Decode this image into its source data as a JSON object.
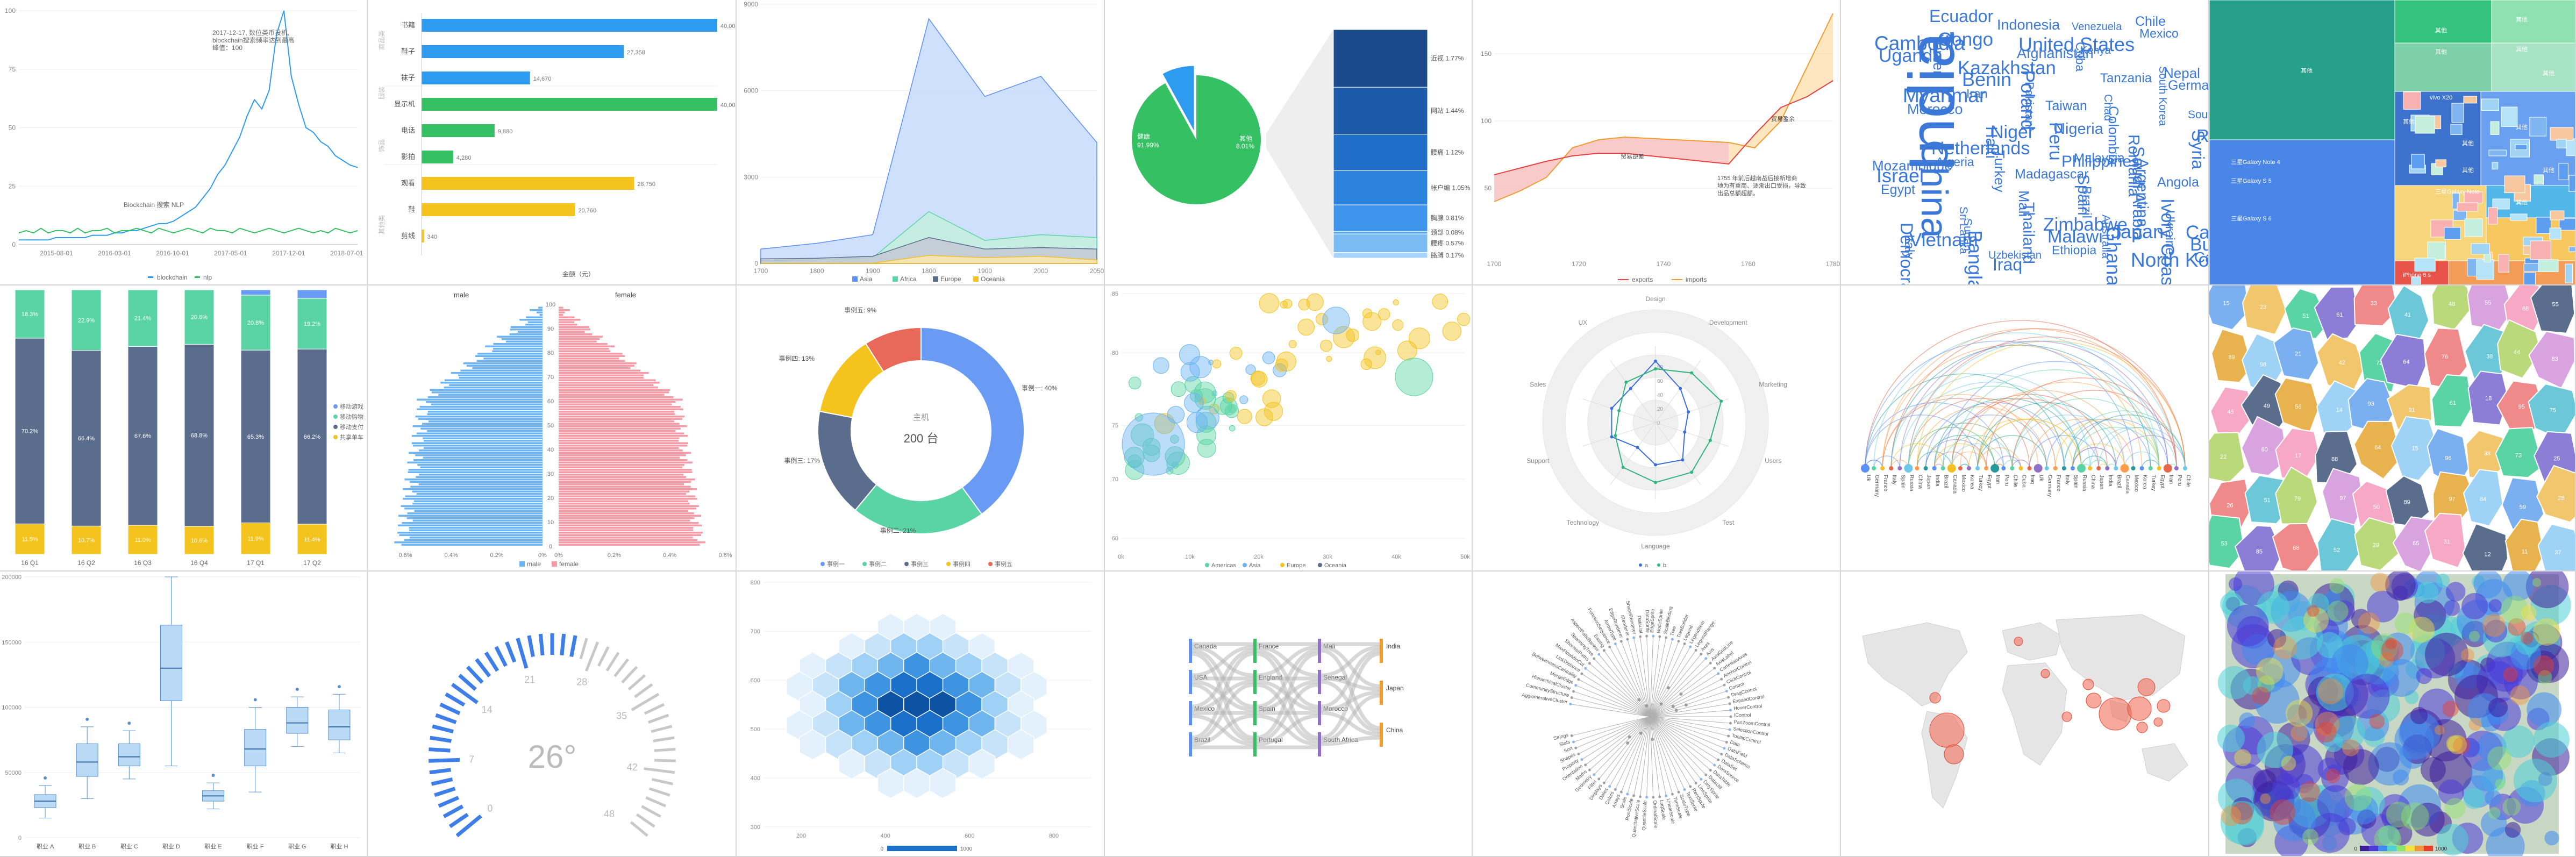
{
  "colors": {
    "blue": "#2d9cf0",
    "green": "#36c064",
    "yellow": "#f5c31e",
    "navy": "#5a6d8c",
    "teal": "#5ad4a5",
    "red": "#e8685a",
    "axis": "#999999",
    "grid": "#eeeeee"
  },
  "chart_data": [
    {
      "id": "c1",
      "type": "line",
      "series_names": [
        "blockchain",
        "nlp"
      ],
      "x_ticks": [
        "2015-08-01",
        "2016-03-01",
        "2016-10-01",
        "2017-05-01",
        "2017-12-01",
        "2018-07-01"
      ],
      "y_ticks": [
        "0",
        "25",
        "50",
        "75",
        "100"
      ],
      "ylim": [
        0,
        100
      ],
      "annotation_top": [
        "2017-12-17, 数位类币投机,",
        "blockchain搜索频率达到最高",
        "峰值：100"
      ],
      "annotation_low": "Blockchain 搜索 NLP",
      "series": [
        {
          "name": "blockchain",
          "values": [
            2,
            2,
            2,
            2,
            2,
            3,
            3,
            3,
            3,
            3,
            4,
            4,
            4,
            5,
            5,
            6,
            6,
            7,
            8,
            9,
            9,
            10,
            12,
            14,
            16,
            20,
            24,
            30,
            34,
            40,
            46,
            55,
            62,
            58,
            66,
            90,
            100,
            72,
            60,
            50,
            48,
            44,
            42,
            38,
            36,
            34,
            33
          ]
        },
        {
          "name": "nlp",
          "values": [
            5,
            6,
            5,
            7,
            5,
            6,
            6,
            5,
            7,
            5,
            6,
            6,
            7,
            5,
            6,
            6,
            7,
            6,
            5,
            7,
            6,
            5,
            6,
            7,
            6,
            5,
            7,
            6,
            6,
            5,
            7,
            6,
            5,
            6,
            7,
            6,
            5,
            6,
            7,
            6,
            5,
            6,
            5,
            7,
            6,
            5,
            6
          ]
        }
      ]
    },
    {
      "id": "c2",
      "type": "bar",
      "categories": [
        "书籍",
        "鞋子",
        "袜子",
        "显示机",
        "电话",
        "影拍",
        "观看",
        "鞋",
        "剪线"
      ],
      "groups": [
        "商品类",
        "",
        "服装",
        "",
        "饰品",
        "",
        "",
        "其他类",
        ""
      ],
      "values": [
        40000,
        27358,
        14670,
        40000,
        9880,
        4280,
        28750,
        20760,
        340
      ],
      "value_labels": [
        "40,000",
        "27,358",
        "14,670",
        "40,000",
        "9,880",
        "4,280",
        "28,750",
        "20,760",
        "340"
      ],
      "bar_colors": [
        "#2d9cf0",
        "#2d9cf0",
        "#2d9cf0",
        "#36c064",
        "#36c064",
        "#36c064",
        "#f5c31e",
        "#f5c31e",
        "#f5c31e"
      ],
      "xlabel": "金额（元）"
    },
    {
      "id": "c3",
      "type": "area",
      "x_ticks": [
        "1700",
        "1800",
        "1900",
        "1800",
        "1900",
        "2000",
        "2050"
      ],
      "y_ticks": [
        "0",
        "3000",
        "6000",
        "9000"
      ],
      "series": [
        {
          "name": "Asia",
          "values": [
            500,
            700,
            1000,
            8500,
            5800,
            6500,
            4200
          ]
        },
        {
          "name": "Africa",
          "values": [
            100,
            120,
            200,
            1800,
            800,
            1000,
            900
          ]
        },
        {
          "name": "Europe",
          "values": [
            160,
            180,
            250,
            900,
            500,
            550,
            500
          ]
        },
        {
          "name": "Oceania",
          "values": [
            0,
            5,
            10,
            280,
            200,
            250,
            120
          ]
        }
      ],
      "legend": [
        "Asia",
        "Africa",
        "Europe",
        "Oceania"
      ]
    },
    {
      "id": "c4",
      "type": "pie",
      "slices": [
        {
          "name": "健康",
          "value": 91.99,
          "label": "健康\n91.99%",
          "color": "#36c064"
        },
        {
          "name": "其他",
          "value": 8.01,
          "label": "其他\n8.01%",
          "color": "#2d9cf0"
        }
      ],
      "detail_labels": [
        "近视 1.77%",
        "网站 1.44%",
        "腰痛 1.12%",
        "帐户编 1.05%",
        "胸腺 0.81%",
        "颈部 0.08%",
        "腰疼 0.57%",
        "胳膊 0.17%"
      ],
      "detail_values": [
        1.77,
        1.44,
        1.12,
        1.05,
        0.81,
        0.08,
        0.57,
        0.17
      ]
    },
    {
      "id": "c5",
      "type": "area",
      "x_ticks": [
        "1700",
        "1720",
        "1740",
        "1760",
        "1780"
      ],
      "y_ticks": [
        "50",
        "100",
        "150"
      ],
      "exports": [
        40,
        48,
        58,
        80,
        86,
        88,
        87,
        86,
        85,
        84,
        80,
        100,
        140,
        180
      ],
      "imports": [
        60,
        65,
        70,
        74,
        76,
        76,
        74,
        72,
        70,
        68,
        90,
        110,
        118,
        130
      ],
      "label_deficit": "贸易逆差",
      "label_surplus": "贸易盈余",
      "note": [
        "1755 年前后越南战后接新增商",
        "地为有重商、逐渐出口受损，导致",
        "出品总额超额。"
      ],
      "legend": [
        "exports",
        "imports"
      ]
    },
    {
      "id": "c6",
      "type": "table",
      "words": [
        "India",
        "China",
        "United States",
        "Philippines",
        "Bangladesh",
        "Indonesia",
        "Pakistan",
        "Nigeria",
        "Brazil",
        "Japan",
        "Mexico",
        "Germany",
        "Russia",
        "Egypt",
        "Vietnam",
        "Congo",
        "Iran",
        "Turkey",
        "Thailand",
        "Ethiopia",
        "Kenya",
        "Colombia",
        "Argentina",
        "Ukraine",
        "Canada",
        "Uganda",
        "Morocco",
        "Algeria",
        "Sudan",
        "Iraq",
        "Poland",
        "Peru",
        "Spain",
        "Ghana",
        "Chile",
        "Nepal",
        "Syria",
        "Israel",
        "Italy",
        "Yemen",
        "Benin",
        "Niger",
        "Mali",
        "Malawi",
        "Cuba",
        "Chad",
        "Saudi Arabia",
        "Ivory Coast",
        "Burkina Faso",
        "Cambodia",
        "Myanmar",
        "Netherlands",
        "Sri Lanka",
        "Uzbekistan",
        "Afghanistan",
        "Taiwan",
        "Malaysia",
        "Australia",
        "North Korea",
        "South Korea",
        "South Africa",
        "Mozambique",
        "Democratic Republic of the Congo",
        "Ecuador",
        "Kazakhstan",
        "Haiti",
        "Madagascar",
        "Zimbabwe",
        "Venezuela",
        "Tanzania",
        "Romania",
        "Angola",
        "Cameroon"
      ]
    },
    {
      "id": "c7",
      "type": "heatmap",
      "labels": [
        "其他",
        "三星Galaxy Note 4",
        "三星Galaxy S 5",
        "三星Galaxy S 6",
        "三星Galaxy Note",
        "其他",
        "vivo X20",
        "其他",
        "其他",
        "其他",
        "其他",
        "其他",
        "其他",
        "其他",
        "其他",
        "其他",
        "其他",
        "iPhone 6 s"
      ]
    },
    {
      "id": "c8",
      "type": "bar",
      "categories": [
        "16 Q1",
        "16 Q2",
        "16 Q3",
        "16 Q4",
        "17 Q1",
        "17 Q2"
      ],
      "series": [
        {
          "name": "共享单车",
          "values": [
            11.5,
            10.7,
            11.0,
            10.6,
            11.9,
            11.4
          ]
        },
        {
          "name": "移动支付",
          "values": [
            70.2,
            66.4,
            67.6,
            68.8,
            65.3,
            66.2
          ]
        },
        {
          "name": "移动购物",
          "values": [
            18.3,
            22.9,
            21.4,
            20.6,
            20.8,
            19.2
          ]
        },
        {
          "name": "移动游戏",
          "values": [
            0,
            0,
            0,
            0,
            2.0,
            3.2
          ]
        }
      ],
      "series_labels": [
        [
          "11.5%",
          "10.7%",
          "11.0%",
          "10.6%",
          "11.9%",
          "11.4%"
        ],
        [
          "70.2%",
          "66.4%",
          "67.6%",
          "68.8%",
          "65.3%",
          "66.2%"
        ],
        [
          "18.3%",
          "22.9%",
          "21.4%",
          "20.6%",
          "20.8%",
          "19.2%"
        ]
      ],
      "legend": [
        "移动游戏",
        "移动购物",
        "移动支付",
        "共享单车"
      ]
    },
    {
      "id": "c9",
      "type": "bar",
      "left_title": "male",
      "right_title": "female",
      "y_ticks": [
        "0",
        "10",
        "20",
        "30",
        "40",
        "50",
        "60",
        "70",
        "80",
        "90",
        "100"
      ],
      "x_ticks_left": [
        "0.6%",
        "0.4%",
        "0.2%",
        "0%"
      ],
      "x_ticks_right": [
        "0%",
        "0.2%",
        "0.4%",
        "0.6%"
      ],
      "legend": [
        "male",
        "female"
      ]
    },
    {
      "id": "c10",
      "type": "pie",
      "center_title": "主机",
      "center_value": "200 台",
      "slices": [
        {
          "name": "事例一",
          "value": 40,
          "label": "事例一: 40%",
          "color": "#6a9bf4"
        },
        {
          "name": "事例二",
          "value": 21,
          "label": "事例二: 21%",
          "color": "#5ad4a5"
        },
        {
          "name": "事例三",
          "value": 17,
          "label": "事例三: 17%",
          "color": "#5a6d8c"
        },
        {
          "name": "事例四",
          "value": 13,
          "label": "事例四: 13%",
          "color": "#f5c31e"
        },
        {
          "name": "事例五",
          "value": 9,
          "label": "事例五: 9%",
          "color": "#e8685a"
        }
      ]
    },
    {
      "id": "c11",
      "type": "scatter",
      "x_ticks": [
        "0k",
        "10k",
        "20k",
        "30k",
        "40k",
        "50k"
      ],
      "y_ticks": [
        "60",
        "70",
        "75",
        "80",
        "85"
      ],
      "legend": [
        "Americas",
        "Asia",
        "Europe",
        "Oceania"
      ]
    },
    {
      "id": "c12",
      "type": "scatter",
      "axes": [
        "Design",
        "Development",
        "Marketing",
        "Users",
        "Test",
        "Language",
        "Technology",
        "Support",
        "Sales",
        "UX"
      ],
      "ring_labels": [
        "0",
        "20",
        "40",
        "60",
        "80"
      ],
      "series": [
        {
          "name": "a",
          "values": [
            80,
            55,
            45,
            40,
            60,
            55,
            40,
            60,
            60,
            55
          ]
        },
        {
          "name": "b",
          "values": [
            70,
            80,
            90,
            75,
            80,
            78,
            72,
            55,
            50,
            65
          ]
        }
      ],
      "legend": [
        "a",
        "b"
      ]
    },
    {
      "id": "c13",
      "type": "scatter",
      "labels": [
        "Uk",
        "Germany",
        "France",
        "Italy",
        "Spain",
        "Russia",
        "China",
        "Japan",
        "India",
        "Brazil",
        "Canada",
        "Mexico",
        "Korea",
        "Turkey",
        "Egypt",
        "Iran",
        "Peru",
        "Chile",
        "Cuba",
        "Iraq"
      ]
    },
    {
      "id": "c14",
      "type": "heatmap",
      "numbers": [
        "15",
        "23",
        "51",
        "61",
        "33",
        "41",
        "48",
        "55",
        "68",
        "55",
        "89",
        "98",
        "21",
        "42",
        "72",
        "64",
        "76",
        "38",
        "44",
        "83",
        "45",
        "49",
        "56",
        "14",
        "93",
        "91",
        "61",
        "18",
        "95",
        "75",
        "22",
        "60",
        "17",
        "88",
        "64",
        "15",
        "96",
        "38",
        "73",
        "25",
        "26",
        "51",
        "79",
        "97",
        "50",
        "89",
        "97",
        "84",
        "59",
        "28",
        "53",
        "85",
        "68",
        "52",
        "29",
        "65",
        "31",
        "12",
        "11",
        "37"
      ]
    },
    {
      "id": "c15",
      "type": "scatter",
      "categories": [
        "职业 A",
        "职业 B",
        "职业 C",
        "职业 D",
        "职业 E",
        "职业 F",
        "职业 G",
        "职业 H"
      ],
      "y_ticks": [
        "0",
        "50000",
        "100000",
        "150000",
        "200000"
      ],
      "boxes": [
        {
          "min": 15000,
          "q1": 23000,
          "med": 28000,
          "q3": 33000,
          "max": 40000
        },
        {
          "min": 30000,
          "q1": 47000,
          "med": 58000,
          "q3": 72000,
          "max": 85000
        },
        {
          "min": 45000,
          "q1": 55000,
          "med": 62000,
          "q3": 72000,
          "max": 82000
        },
        {
          "min": 55000,
          "q1": 105000,
          "med": 130000,
          "q3": 163000,
          "max": 200000
        },
        {
          "min": 22000,
          "q1": 28000,
          "med": 32000,
          "q3": 36000,
          "max": 42000
        },
        {
          "min": 35000,
          "q1": 55000,
          "med": 68000,
          "q3": 83000,
          "max": 100000
        },
        {
          "min": 70000,
          "q1": 80000,
          "med": 88000,
          "q3": 100000,
          "max": 108000
        },
        {
          "min": 65000,
          "q1": 75000,
          "med": 85000,
          "q3": 98000,
          "max": 110000
        }
      ]
    },
    {
      "id": "c16",
      "type": "bar",
      "value_label": "26°",
      "value": 26,
      "min": 0,
      "max": 48,
      "tick_labels": [
        "0",
        "7",
        "14",
        "21",
        "28",
        "35",
        "42",
        "48"
      ]
    },
    {
      "id": "c17",
      "type": "heatmap",
      "y_ticks": [
        "300",
        "400",
        "500",
        "600",
        "700",
        "800"
      ],
      "x_ticks": [
        "200",
        "400",
        "600",
        "800"
      ],
      "legend_min": "0",
      "legend_max": "1000"
    },
    {
      "id": "c18",
      "type": "diagram",
      "left": [
        "Canada",
        "USA",
        "Mexico",
        "Brazil"
      ],
      "mid1": [
        "France",
        "England",
        "Spain",
        "Portugal"
      ],
      "mid2": [
        "Mali",
        "Senegal",
        "Morocco",
        "South Africa"
      ],
      "right": [
        "India",
        "Japan",
        "China"
      ]
    },
    {
      "id": "c19",
      "type": "diagram",
      "leaves": [
        "AgglomerativeCluster",
        "CommunityStructure",
        "HierarchicalCluster",
        "MergeEdge",
        "BetweennessCentrality",
        "LinkDistance",
        "MaxFlowMinCut",
        "ShortestPaths",
        "SpanningTree",
        "AspectRatioBanker",
        "Easing",
        "FunctionSequence",
        "ArrowType",
        "EdgeRenderer",
        "IRenderer",
        "ShapeRenderer",
        "DataList",
        "DataSprite",
        "EdgeSprite",
        "NodeSprite",
        "ScaleBinding",
        "Tree",
        "TreeBuilder",
        "Legend",
        "LegendItem",
        "LegendRange",
        "Axes",
        "Axis",
        "AxisGridLine",
        "AxisLabel",
        "CartesianAxes",
        "AnchorControl",
        "ClickControl",
        "Control",
        "DragControl",
        "ExpandControl",
        "HoverControl",
        "IControl",
        "PanZoomControl",
        "SelectionControl",
        "TooltipControl",
        "Data",
        "DataField",
        "DataSchema",
        "DataSet",
        "DataSource",
        "DataTable",
        "DataUtil",
        "DirtySprite",
        "LineSprite",
        "RectSprite",
        "TextSprite",
        "ScaleType",
        "TimeScale",
        "LinearScale",
        "LogScale",
        "OrdinalScale",
        "QuantileScale",
        "QuantitativeScale",
        "RootScale",
        "Scale",
        "Arrays",
        "Colors",
        "Dates",
        "Displays",
        "Filter",
        "Geometry",
        "Maths",
        "Orientation",
        "Property",
        "Shapes",
        "Sort",
        "Stats",
        "Strings"
      ]
    },
    {
      "id": "c20",
      "type": "diagram",
      "bubbles": "map bubbles"
    },
    {
      "id": "c21",
      "type": "heatmap",
      "legend_min": "0",
      "legend_max": "1000"
    }
  ]
}
